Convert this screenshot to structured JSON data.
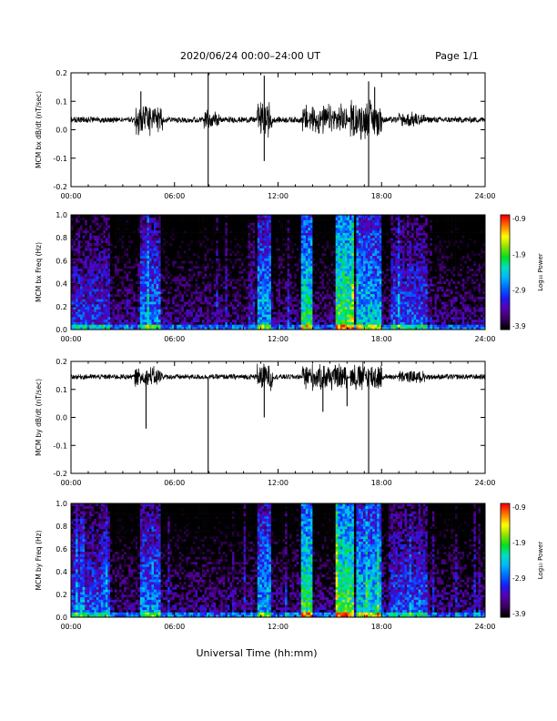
{
  "header": {
    "title": "2020/06/24  00:00–24:00 UT",
    "page": "Page 1/1"
  },
  "footer": {
    "xlabel": "Universal Time (hh:mm)"
  },
  "chart_data": [
    {
      "type": "line",
      "panel": "bx-derivative",
      "ylabel": "MCM bx dB/dt (nT/sec)",
      "xlim": [
        0,
        24
      ],
      "ylim": [
        -0.2,
        0.2
      ],
      "x_ticks": [
        "00:00",
        "06:00",
        "12:00",
        "18:00",
        "24:00"
      ],
      "y_ticks": [
        "-0.2",
        "-0.1",
        "0.0",
        "0.1",
        "0.2"
      ],
      "baseline": 0.035,
      "noise_amplitude": 0.01,
      "color": "#000000",
      "bursts": [
        {
          "start": 3.7,
          "end": 5.3,
          "amp": 0.05
        },
        {
          "start": 7.7,
          "end": 8.6,
          "amp": 0.03
        },
        {
          "start": 10.8,
          "end": 11.7,
          "amp": 0.06
        },
        {
          "start": 13.4,
          "end": 16.0,
          "amp": 0.05
        },
        {
          "start": 16.2,
          "end": 18.0,
          "amp": 0.07
        },
        {
          "start": 19.0,
          "end": 20.5,
          "amp": 0.02
        }
      ],
      "spikes": [
        {
          "x": 7.95,
          "y": -0.21
        },
        {
          "x": 7.95,
          "y": 0.2
        },
        {
          "x": 11.2,
          "y": -0.11
        },
        {
          "x": 11.2,
          "y": 0.19
        },
        {
          "x": 17.25,
          "y": -0.21
        },
        {
          "x": 17.25,
          "y": 0.17
        },
        {
          "x": 4.05,
          "y": 0.135
        },
        {
          "x": 17.6,
          "y": 0.15
        }
      ]
    },
    {
      "type": "heatmap",
      "panel": "bx-spectrogram",
      "ylabel": "MCM bx Freq (Hz)",
      "xlim": [
        0,
        24
      ],
      "ylim": [
        0.0,
        1.0
      ],
      "x_ticks": [
        "00:00",
        "06:00",
        "12:00",
        "18:00",
        "24:00"
      ],
      "y_ticks": [
        "0.0",
        "0.2",
        "0.4",
        "0.6",
        "0.8",
        "1.0"
      ],
      "colorbar": {
        "label": "Log₁₀ Power",
        "ticks": [
          "-0.9",
          "-1.9",
          "-2.9",
          "-3.9"
        ],
        "range": [
          -3.9,
          -0.9
        ]
      },
      "colormap": [
        "#000000",
        "#3a0060",
        "#5a00b0",
        "#1b1bf0",
        "#0066ff",
        "#00b3ff",
        "#00e0c0",
        "#00e020",
        "#8fe000",
        "#ffff00",
        "#ff8000",
        "#ff0000"
      ],
      "active_intervals": [
        {
          "start": 0.0,
          "end": 2.2,
          "level": -3.0
        },
        {
          "start": 4.0,
          "end": 5.2,
          "level": -2.7
        },
        {
          "start": 10.8,
          "end": 11.6,
          "level": -2.5
        },
        {
          "start": 13.3,
          "end": 14.0,
          "level": -2.1
        },
        {
          "start": 15.3,
          "end": 16.4,
          "level": -1.9
        },
        {
          "start": 16.6,
          "end": 18.0,
          "level": -2.4
        },
        {
          "start": 18.6,
          "end": 20.6,
          "level": -2.9
        }
      ]
    },
    {
      "type": "line",
      "panel": "by-derivative",
      "ylabel": "MCM by dB/dt (nT/sec)",
      "xlim": [
        0,
        24
      ],
      "ylim": [
        -0.2,
        0.2
      ],
      "x_ticks": [
        "00:00",
        "06:00",
        "12:00",
        "18:00",
        "24:00"
      ],
      "y_ticks": [
        "-0.2",
        "-0.1",
        "0.0",
        "0.1",
        "0.2"
      ],
      "baseline": 0.145,
      "noise_amplitude": 0.009,
      "color": "#000000",
      "bursts": [
        {
          "start": 3.7,
          "end": 5.3,
          "amp": 0.03
        },
        {
          "start": 10.8,
          "end": 11.7,
          "amp": 0.05
        },
        {
          "start": 13.4,
          "end": 16.0,
          "amp": 0.045
        },
        {
          "start": 16.2,
          "end": 18.0,
          "amp": 0.05
        },
        {
          "start": 19.0,
          "end": 20.5,
          "amp": 0.015
        }
      ],
      "spikes": [
        {
          "x": 4.35,
          "y": -0.04
        },
        {
          "x": 7.95,
          "y": -0.21
        },
        {
          "x": 11.2,
          "y": 0.0
        },
        {
          "x": 17.25,
          "y": -0.21
        },
        {
          "x": 14.6,
          "y": 0.02
        },
        {
          "x": 16.0,
          "y": 0.04
        }
      ]
    },
    {
      "type": "heatmap",
      "panel": "by-spectrogram",
      "ylabel": "MCM by Freq (Hz)",
      "xlim": [
        0,
        24
      ],
      "ylim": [
        0.0,
        1.0
      ],
      "x_ticks": [
        "00:00",
        "06:00",
        "12:00",
        "18:00",
        "24:00"
      ],
      "y_ticks": [
        "0.0",
        "0.2",
        "0.4",
        "0.6",
        "0.8",
        "1.0"
      ],
      "colorbar": {
        "label": "Log₁₀ Power",
        "ticks": [
          "-0.9",
          "-1.9",
          "-2.9",
          "-3.9"
        ],
        "range": [
          -3.9,
          -0.9
        ]
      },
      "colormap": [
        "#000000",
        "#3a0060",
        "#5a00b0",
        "#1b1bf0",
        "#0066ff",
        "#00b3ff",
        "#00e0c0",
        "#00e020",
        "#8fe000",
        "#ffff00",
        "#ff8000",
        "#ff0000"
      ],
      "active_intervals": [
        {
          "start": 0.0,
          "end": 2.2,
          "level": -2.9
        },
        {
          "start": 4.0,
          "end": 5.2,
          "level": -2.7
        },
        {
          "start": 10.8,
          "end": 11.6,
          "level": -2.5
        },
        {
          "start": 13.3,
          "end": 14.0,
          "level": -2.0
        },
        {
          "start": 15.3,
          "end": 16.4,
          "level": -1.9
        },
        {
          "start": 16.6,
          "end": 18.0,
          "level": -2.3
        },
        {
          "start": 18.6,
          "end": 20.6,
          "level": -2.9
        }
      ]
    }
  ]
}
